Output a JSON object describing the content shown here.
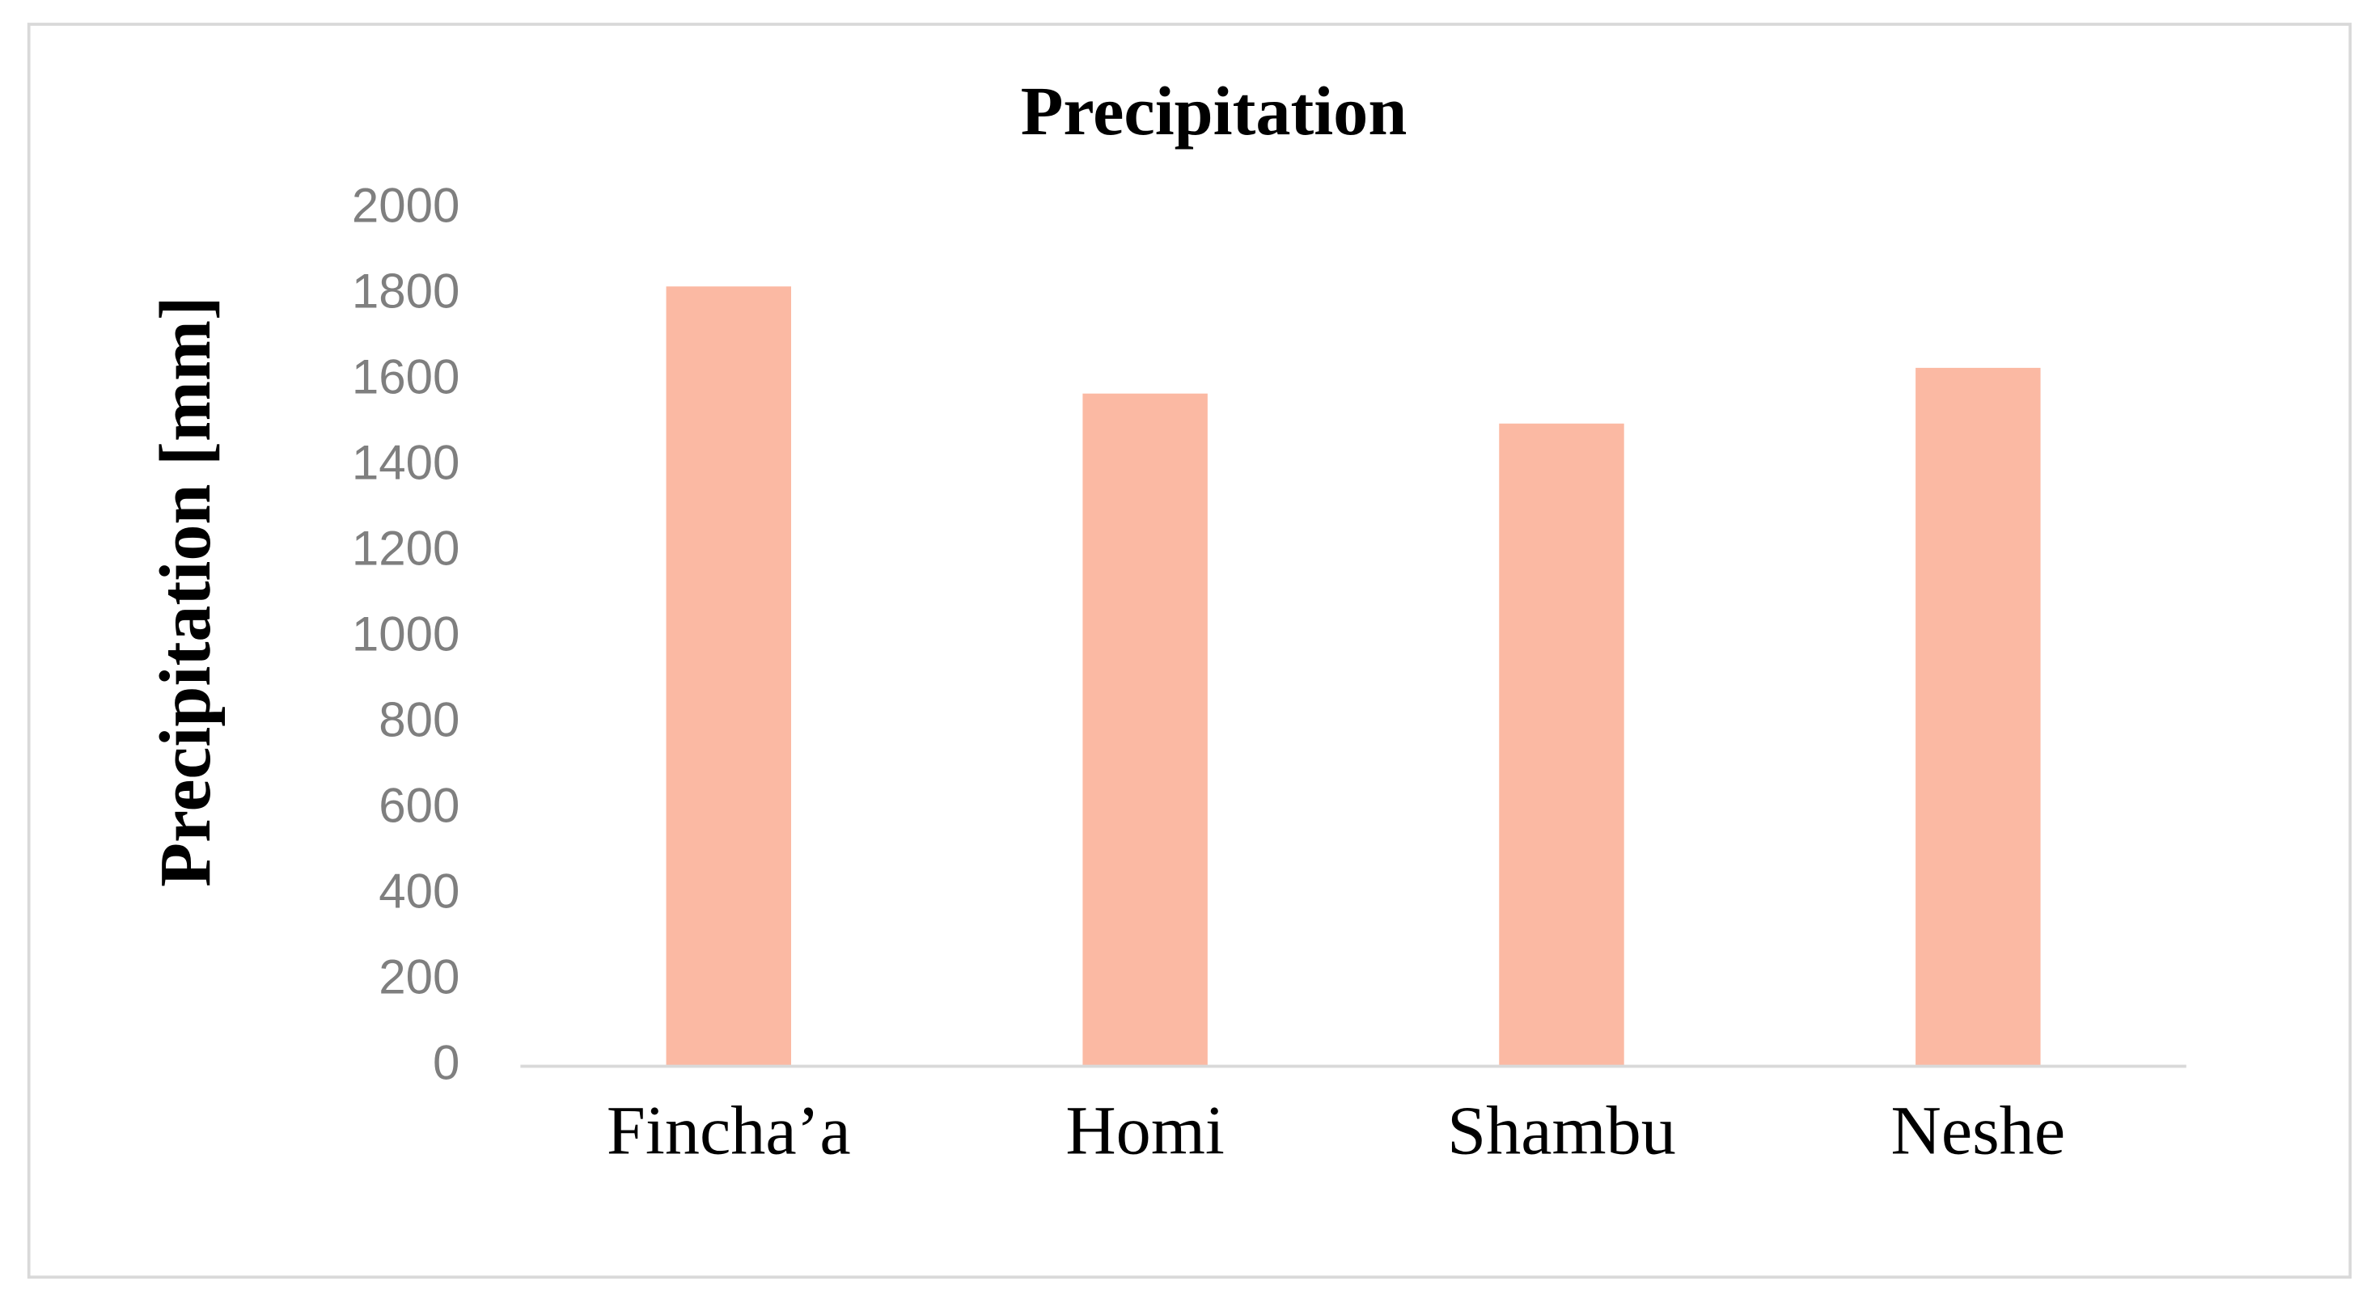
{
  "chart_data": {
    "type": "bar",
    "title": "Precipitation",
    "ylabel": "Precipitation [mm]",
    "categories": [
      "Fincha’a",
      "Homi",
      "Shambu",
      "Neshe"
    ],
    "values": [
      1820,
      1570,
      1500,
      1630
    ],
    "color": "#fbb9a3",
    "ylim": [
      0,
      2000
    ],
    "yticks": [
      0,
      200,
      400,
      600,
      800,
      1000,
      1200,
      1400,
      1600,
      1800,
      2000
    ],
    "grid": false
  }
}
